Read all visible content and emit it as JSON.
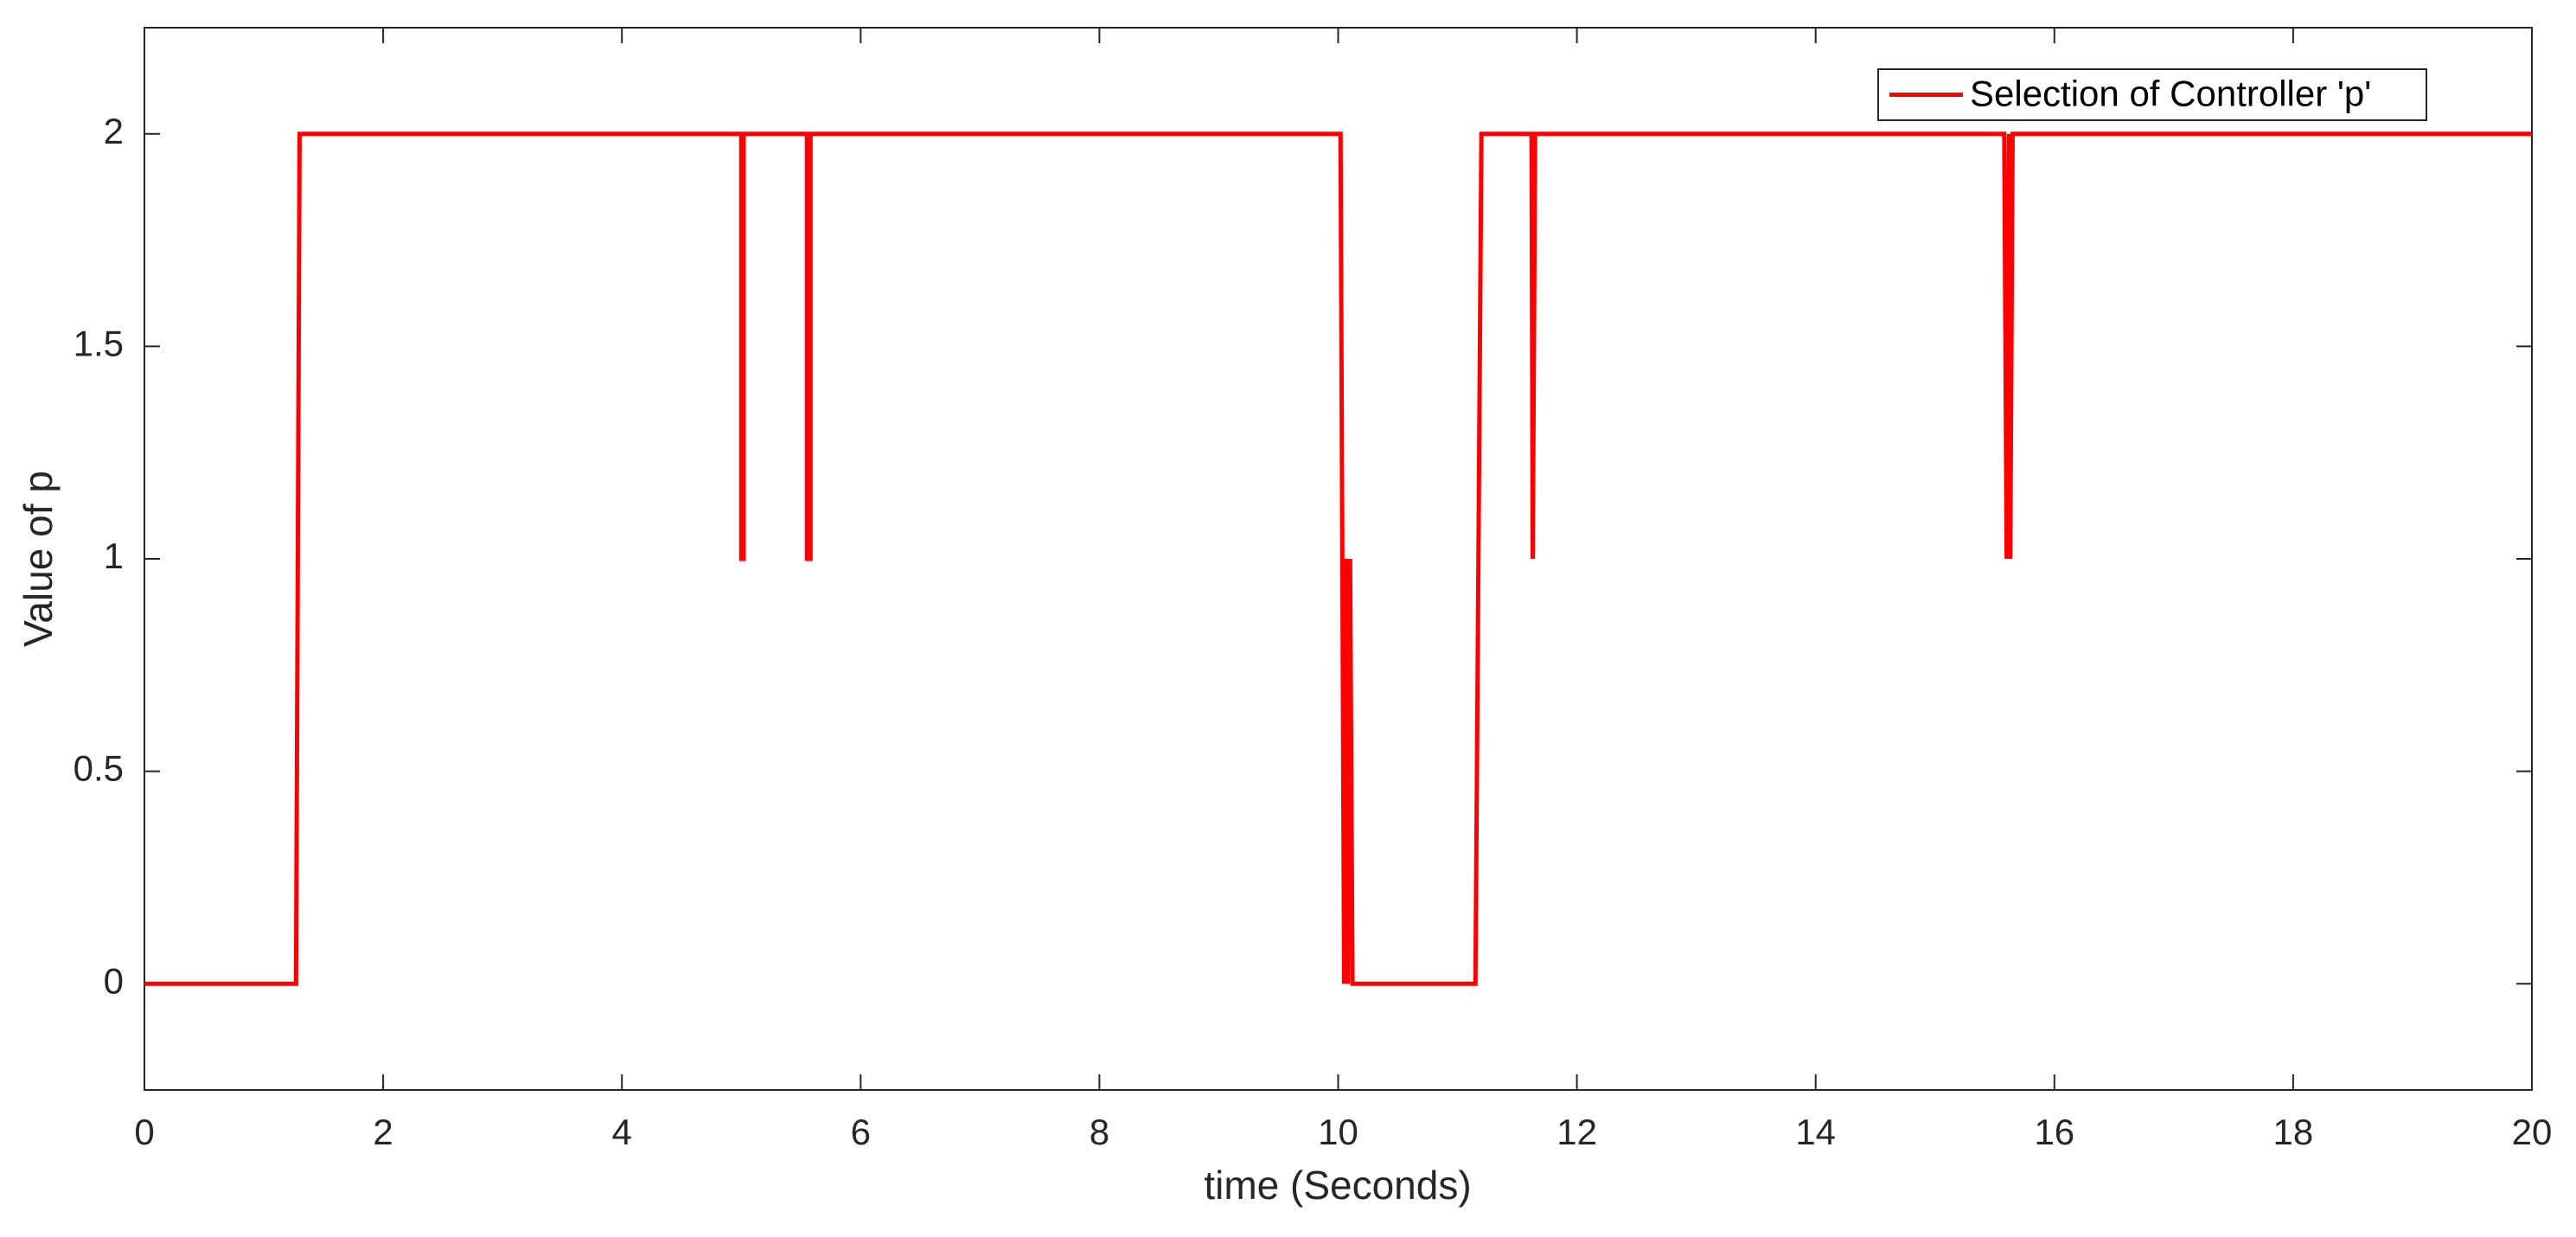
{
  "chart_data": {
    "type": "line",
    "xlabel": "time (Seconds)",
    "ylabel": "Value of p",
    "x": [
      0,
      1.27,
      1.3,
      5.0,
      5.0,
      5.02,
      5.02,
      5.55,
      5.55,
      5.58,
      5.58,
      10.02,
      10.05,
      10.07,
      10.08,
      10.1,
      10.12,
      11.15,
      11.2,
      11.62,
      11.63,
      11.65,
      15.58,
      15.6,
      15.62,
      15.63,
      15.65,
      20
    ],
    "series": [
      {
        "name": "Selection of Controller 'p'",
        "color": "#ff0000",
        "values": [
          0,
          0,
          2,
          2,
          1,
          1,
          2,
          2,
          1,
          1,
          2,
          2,
          0,
          1,
          0,
          1,
          0,
          0,
          2,
          2,
          1,
          2,
          2,
          1,
          2,
          1,
          2,
          2
        ]
      }
    ],
    "xlim": [
      0,
      20
    ],
    "xticks": [
      0,
      2,
      4,
      6,
      8,
      10,
      12,
      14,
      16,
      18,
      20
    ],
    "ylim": [
      -0.25,
      2.25
    ],
    "yticks": [
      0,
      0.5,
      1,
      1.5,
      2
    ],
    "grid": false,
    "legend": "upper right"
  }
}
